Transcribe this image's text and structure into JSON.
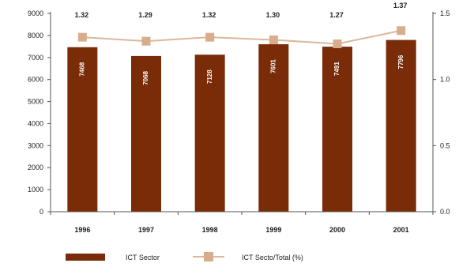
{
  "chart_data": {
    "type": "bar",
    "categories": [
      "1996",
      "1997",
      "1998",
      "1999",
      "2000",
      "2001"
    ],
    "series": [
      {
        "name": "ICT Sector",
        "type": "bar",
        "axis": "left",
        "color": "#7a2c08",
        "values": [
          7468,
          7068,
          7128,
          7601,
          7491,
          7796
        ],
        "value_labels": [
          "7468",
          "7068",
          "7128",
          "7601",
          "7491",
          "7796"
        ]
      },
      {
        "name": "ICT Secto/Total (%)",
        "type": "line",
        "axis": "right",
        "color": "#dbb89c",
        "marker_color": "#d8ad8c",
        "values": [
          1.32,
          1.29,
          1.32,
          1.3,
          1.27,
          1.37
        ],
        "value_labels": [
          "1.32",
          "1.29",
          "1.32",
          "1.30",
          "1.27",
          "1.37"
        ]
      }
    ],
    "y_left": {
      "min": 0,
      "max": 9000,
      "ticks": [
        0,
        1000,
        2000,
        3000,
        4000,
        5000,
        6000,
        7000,
        8000,
        9000
      ],
      "tick_labels": [
        "0",
        "1000",
        "2000",
        "3000",
        "4000",
        "5000",
        "6000",
        "7000",
        "8000",
        "9000"
      ]
    },
    "y_right": {
      "min": 0,
      "max": 1.5,
      "ticks": [
        0,
        0.5,
        1.0,
        1.5
      ],
      "tick_labels": [
        "0.0",
        "0.5",
        "1.0",
        "1.5"
      ]
    },
    "grid": false,
    "legend": "bottom-center"
  }
}
